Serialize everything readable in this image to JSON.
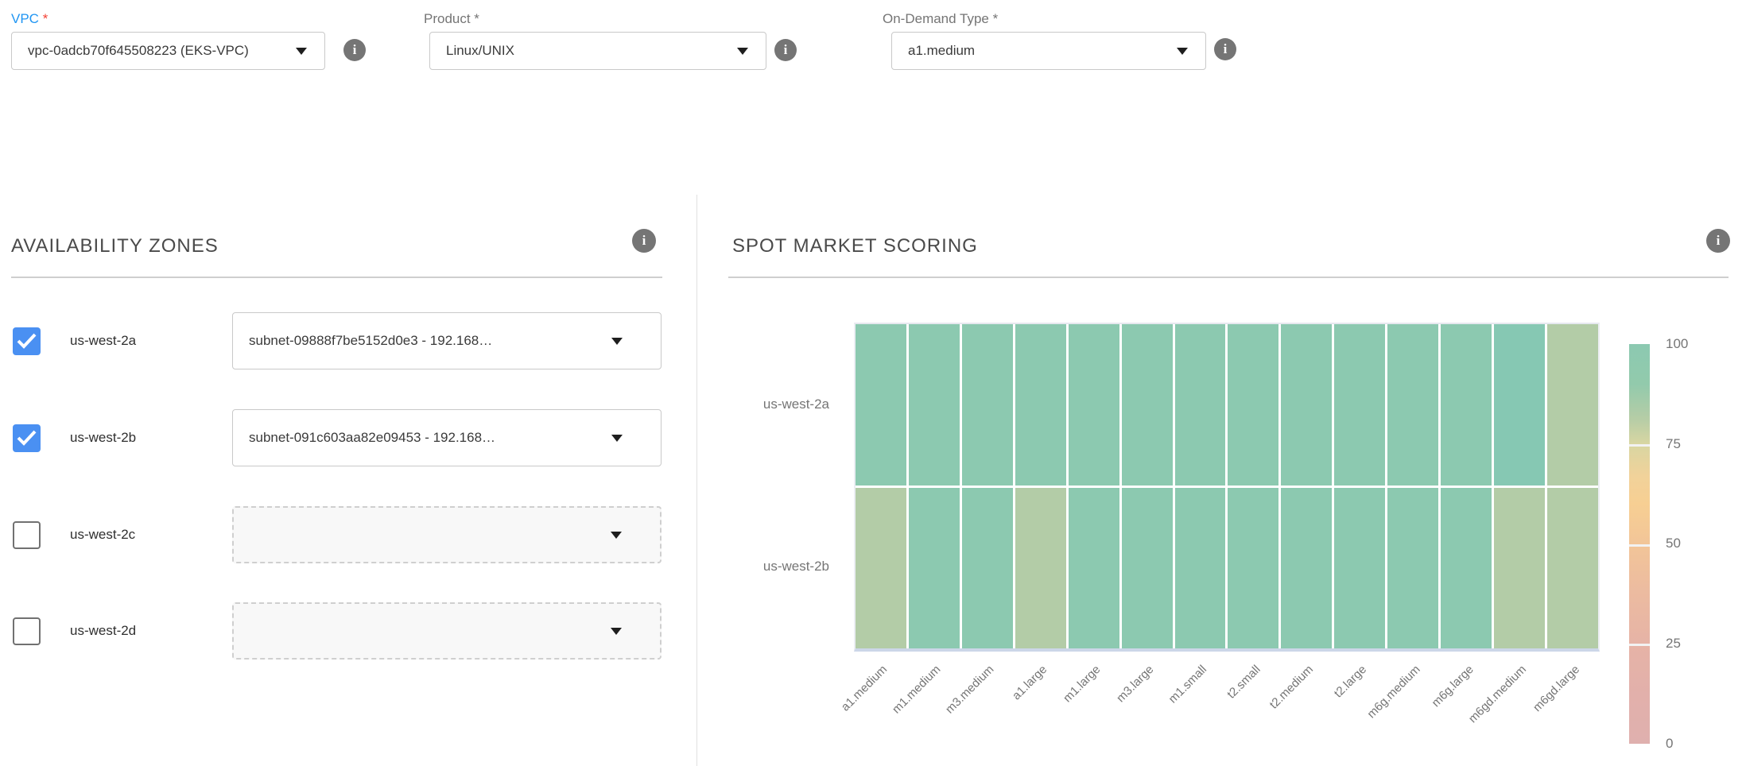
{
  "form": {
    "vpc": {
      "label": "VPC",
      "required_mark": "*",
      "value": "vpc-0adcb70f645508223 (EKS-VPC)"
    },
    "product": {
      "label": "Product *",
      "value": "Linux/UNIX"
    },
    "on_demand_type": {
      "label": "On-Demand Type *",
      "value": "a1.medium"
    }
  },
  "availability_zones": {
    "title": "AVAILABILITY ZONES",
    "rows": [
      {
        "zone": "us-west-2a",
        "checked": true,
        "subnet": "subnet-09888f7be5152d0e3 - 192.168…"
      },
      {
        "zone": "us-west-2b",
        "checked": true,
        "subnet": "subnet-091c603aa82e09453 - 192.168…"
      },
      {
        "zone": "us-west-2c",
        "checked": false,
        "subnet": ""
      },
      {
        "zone": "us-west-2d",
        "checked": false,
        "subnet": ""
      }
    ]
  },
  "spot_market": {
    "title": "SPOT MARKET SCORING"
  },
  "chart_data": {
    "type": "heatmap",
    "title": "SPOT MARKET SCORING",
    "x_categories": [
      "a1.medium",
      "m1.medium",
      "m3.medium",
      "a1.large",
      "m1.large",
      "m3.large",
      "m1.small",
      "t2.small",
      "t2.medium",
      "t2.large",
      "m6g.medium",
      "m6g.large",
      "m6gd.medium",
      "m6gd.large"
    ],
    "y_categories": [
      "us-west-2a",
      "us-west-2b"
    ],
    "series": [
      {
        "name": "us-west-2a",
        "values": [
          95,
          95,
          95,
          95,
          95,
          95,
          95,
          95,
          95,
          95,
          95,
          95,
          98,
          82
        ]
      },
      {
        "name": "us-west-2b",
        "values": [
          82,
          95,
          95,
          82,
          95,
          95,
          95,
          95,
          95,
          95,
          95,
          95,
          82,
          82
        ]
      }
    ],
    "value_range": [
      0,
      100
    ],
    "colorbar_ticks": [
      "100",
      "75",
      "50",
      "25",
      "0"
    ],
    "legend_position": "right",
    "grid": false,
    "color_stops": [
      {
        "min": 96,
        "color": "#86c8b3"
      },
      {
        "min": 90,
        "color": "#8cc9b0"
      },
      {
        "min": 0,
        "color": "#b3cca7"
      }
    ]
  },
  "icons": {
    "info": "i",
    "check": "✓",
    "caret": "▼"
  },
  "colors": {
    "accent_blue": "#4a90f2",
    "label_blue": "#2196f3",
    "required_red": "#f44336",
    "heat_green": "#8cc9b0",
    "heat_sage": "#b3cca7",
    "scale_orange": "#f7cf93",
    "scale_pink": "#dfb0ae"
  }
}
